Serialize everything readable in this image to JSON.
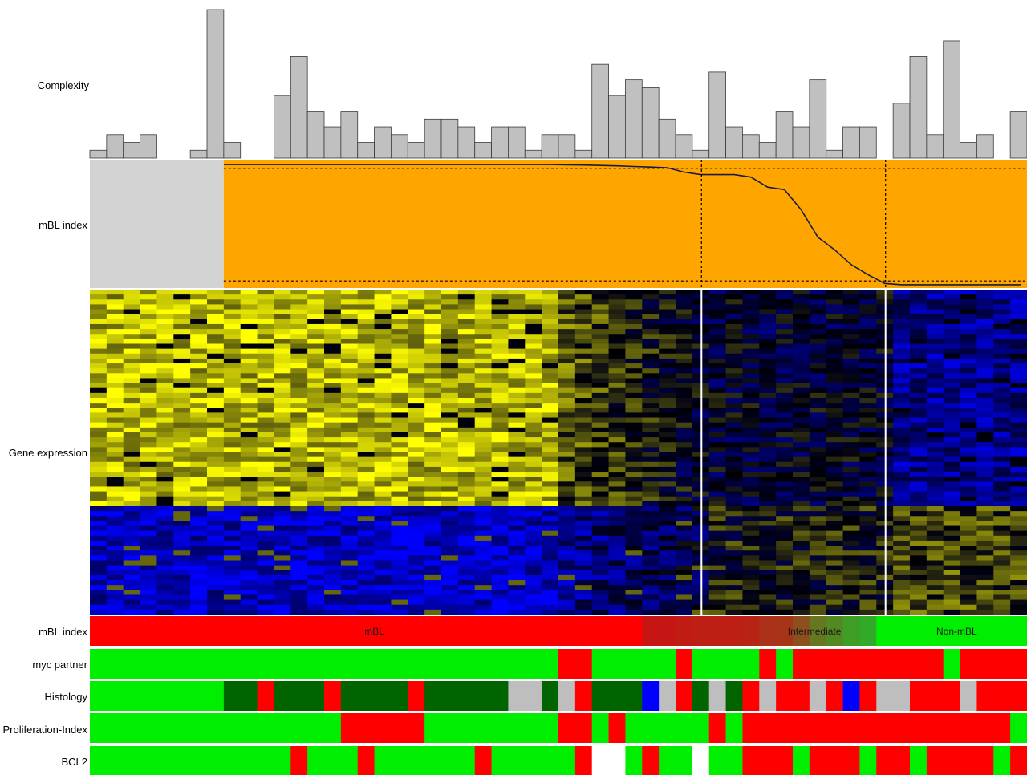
{
  "chart_data": {
    "type": "heatmap",
    "n_samples": 56,
    "row_labels": {
      "complexity": "Complexity",
      "mbl_index": "mBL index",
      "gene_expression": "Gene expression",
      "mbl_class": "mBL index",
      "myc_partner": "myc partner",
      "histology": "Histology",
      "proliferation": "Proliferation-Index",
      "bcl2": "BCL2"
    },
    "complexity": [
      1,
      3,
      2,
      3,
      0,
      0,
      1,
      19,
      2,
      0,
      0,
      8,
      13,
      6,
      4,
      6,
      2,
      4,
      3,
      2,
      5,
      5,
      4,
      2,
      4,
      4,
      1,
      3,
      3,
      1,
      12,
      8,
      10,
      9,
      5,
      3,
      1,
      11,
      4,
      3,
      2,
      6,
      4,
      10,
      1,
      4,
      4,
      0,
      7,
      13,
      3,
      15,
      2,
      3,
      0,
      6
    ],
    "mbl_index_values": [
      null,
      null,
      null,
      null,
      null,
      null,
      null,
      null,
      0.98,
      0.98,
      0.98,
      0.98,
      0.98,
      0.98,
      0.98,
      0.98,
      0.98,
      0.98,
      0.98,
      0.98,
      0.98,
      0.98,
      0.98,
      0.98,
      0.98,
      0.98,
      0.98,
      0.98,
      0.978,
      0.976,
      0.973,
      0.97,
      0.965,
      0.96,
      0.955,
      0.92,
      0.9,
      0.9,
      0.9,
      0.88,
      0.8,
      0.78,
      0.62,
      0.4,
      0.3,
      0.18,
      0.1,
      0.03,
      0.02,
      0.02,
      0.02,
      0.02,
      0.02,
      0.02,
      0.02,
      0.02
    ],
    "mbl_index_thresholds": [
      0.95,
      0.05
    ],
    "mbl_index_ylim": [
      0,
      1
    ],
    "group_boundaries_after": [
      36,
      47
    ],
    "gene_rows_up": 44,
    "gene_rows_down": 22,
    "class_labels": [
      "mBL",
      "Intermediate",
      "Non-mBL"
    ],
    "myc_partner": [
      "G",
      "G",
      "G",
      "G",
      "G",
      "G",
      "G",
      "G",
      "G",
      "G",
      "G",
      "G",
      "G",
      "G",
      "G",
      "G",
      "G",
      "G",
      "G",
      "G",
      "G",
      "G",
      "G",
      "G",
      "G",
      "G",
      "G",
      "G",
      "R",
      "R",
      "G",
      "G",
      "G",
      "G",
      "G",
      "R",
      "G",
      "G",
      "G",
      "G",
      "R",
      "G",
      "R",
      "R",
      "R",
      "R",
      "R",
      "R",
      "R",
      "R",
      "R",
      "G",
      "R",
      "R",
      "R",
      "R"
    ],
    "histology": [
      "G",
      "G",
      "G",
      "G",
      "G",
      "G",
      "G",
      "G",
      "D",
      "D",
      "R",
      "D",
      "D",
      "D",
      "R",
      "D",
      "D",
      "D",
      "D",
      "R",
      "D",
      "D",
      "D",
      "D",
      "D",
      "Y",
      "Y",
      "D",
      "Y",
      "R",
      "D",
      "D",
      "D",
      "B",
      "Y",
      "R",
      "D",
      "Y",
      "D",
      "R",
      "Y",
      "R",
      "R",
      "Y",
      "R",
      "B",
      "R",
      "Y",
      "Y",
      "R",
      "R",
      "R",
      "Y",
      "R",
      "R",
      "R"
    ],
    "proliferation": [
      "G",
      "G",
      "G",
      "G",
      "G",
      "G",
      "G",
      "G",
      "G",
      "G",
      "G",
      "G",
      "G",
      "G",
      "G",
      "R",
      "R",
      "R",
      "R",
      "R",
      "G",
      "G",
      "G",
      "G",
      "G",
      "G",
      "G",
      "G",
      "R",
      "R",
      "G",
      "R",
      "G",
      "G",
      "G",
      "G",
      "G",
      "R",
      "G",
      "R",
      "R",
      "R",
      "R",
      "R",
      "R",
      "R",
      "R",
      "R",
      "R",
      "R",
      "R",
      "R",
      "R",
      "R",
      "R",
      "G"
    ],
    "bcl2": [
      "G",
      "G",
      "G",
      "G",
      "G",
      "G",
      "G",
      "G",
      "G",
      "G",
      "G",
      "G",
      "R",
      "G",
      "G",
      "G",
      "R",
      "G",
      "G",
      "G",
      "G",
      "G",
      "G",
      "R",
      "G",
      "G",
      "G",
      "G",
      "G",
      "R",
      "W",
      "W",
      "G",
      "R",
      "G",
      "G",
      "W",
      "G",
      "G",
      "R",
      "R",
      "R",
      "G",
      "R",
      "R",
      "R",
      "G",
      "R",
      "R",
      "G",
      "R",
      "R",
      "R",
      "R",
      "G",
      "R"
    ],
    "colors": {
      "bar_fill": "#c0c0c0",
      "mbl_bg": "#ffa500",
      "mbl_na": "#d3d3d3",
      "red": "#ff0000",
      "green": "#00ee00",
      "dark_green": "#006400",
      "gray": "#bebebe",
      "blue": "#0000ff",
      "white": "#ffffff"
    }
  }
}
